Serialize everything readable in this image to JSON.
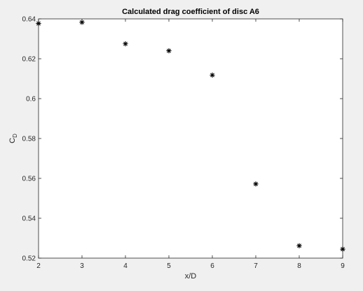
{
  "chart_data": {
    "type": "scatter",
    "title": "Calculated drag coefficient of disc A6",
    "xlabel": "x/D",
    "ylabel_main": "C",
    "ylabel_sub": "D",
    "xlim": [
      2,
      9
    ],
    "ylim": [
      0.52,
      0.64
    ],
    "xticks": [
      "2",
      "3",
      "4",
      "5",
      "6",
      "7",
      "8",
      "9"
    ],
    "yticks": [
      "0.52",
      "0.54",
      "0.56",
      "0.58",
      "0.6",
      "0.62",
      "0.64"
    ],
    "x": [
      2,
      3,
      4,
      5,
      6,
      7,
      8,
      9
    ],
    "y": [
      0.6377,
      0.6383,
      0.6275,
      0.624,
      0.6118,
      0.5572,
      0.5262,
      0.5245
    ],
    "marker": "asterisk",
    "marker_color": "#000000",
    "grid": false,
    "box": true
  }
}
